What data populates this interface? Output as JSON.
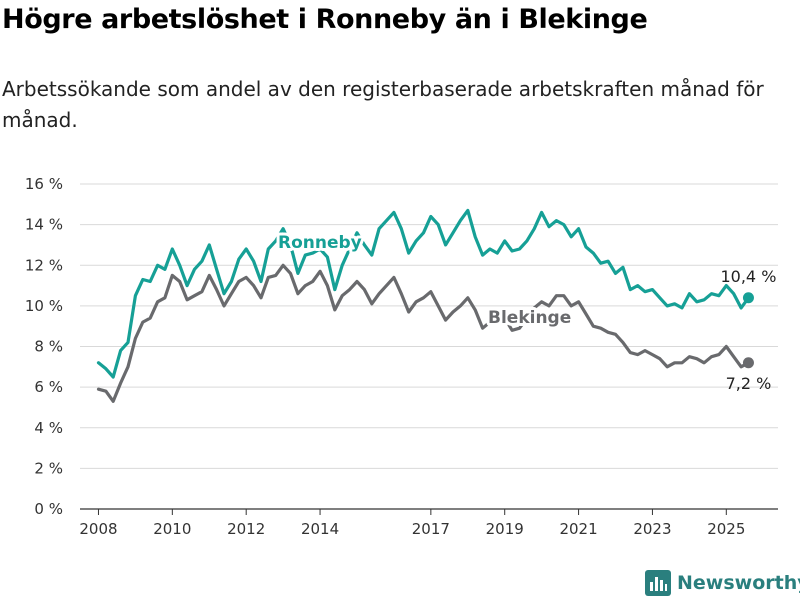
{
  "title": "Högre arbetslöshet i Ronneby än i Blekinge",
  "subtitle": "Arbetssökande som andel av den registerbaserade arbetskraften månad för månad.",
  "brand": "Newsworthy",
  "colors": {
    "ronneby": "#16a096",
    "blekinge": "#696a6d",
    "grid": "#d9d9d9",
    "axis": "#333333"
  },
  "chart_data": {
    "type": "line",
    "y_ticks": [
      0,
      2,
      4,
      6,
      8,
      10,
      12,
      14,
      16
    ],
    "y_tick_labels": [
      "0 %",
      "2 %",
      "4 %",
      "6 %",
      "8 %",
      "10 %",
      "12 %",
      "14 %",
      "16 %"
    ],
    "ylim": [
      0,
      16
    ],
    "xlim": [
      2007.5,
      2026.4
    ],
    "x_ticks": [
      2008,
      2010,
      2012,
      2014,
      2017,
      2019,
      2021,
      2023,
      2025
    ],
    "x_tick_labels": [
      "2008",
      "2010",
      "2012",
      "2014",
      "2017",
      "2019",
      "2021",
      "2023",
      "2025"
    ],
    "grid": true,
    "series": [
      {
        "name": "Ronneby",
        "color_key": "ronneby",
        "end_label": "10,4 %",
        "points": [
          [
            2008.0,
            7.2
          ],
          [
            2008.2,
            6.9
          ],
          [
            2008.4,
            6.5
          ],
          [
            2008.6,
            7.8
          ],
          [
            2008.8,
            8.2
          ],
          [
            2009.0,
            10.5
          ],
          [
            2009.2,
            11.3
          ],
          [
            2009.4,
            11.2
          ],
          [
            2009.6,
            12.0
          ],
          [
            2009.8,
            11.8
          ],
          [
            2010.0,
            12.8
          ],
          [
            2010.2,
            12.0
          ],
          [
            2010.4,
            11.0
          ],
          [
            2010.6,
            11.8
          ],
          [
            2010.8,
            12.2
          ],
          [
            2011.0,
            13.0
          ],
          [
            2011.2,
            11.8
          ],
          [
            2011.4,
            10.6
          ],
          [
            2011.6,
            11.2
          ],
          [
            2011.8,
            12.3
          ],
          [
            2012.0,
            12.8
          ],
          [
            2012.2,
            12.2
          ],
          [
            2012.4,
            11.2
          ],
          [
            2012.6,
            12.8
          ],
          [
            2012.8,
            13.2
          ],
          [
            2013.0,
            13.8
          ],
          [
            2013.2,
            13.0
          ],
          [
            2013.4,
            11.6
          ],
          [
            2013.6,
            12.5
          ],
          [
            2013.8,
            12.6
          ],
          [
            2014.0,
            12.8
          ],
          [
            2014.2,
            12.4
          ],
          [
            2014.4,
            10.8
          ],
          [
            2014.6,
            12.0
          ],
          [
            2014.8,
            12.8
          ],
          [
            2015.0,
            13.6
          ],
          [
            2015.2,
            13.0
          ],
          [
            2015.4,
            12.5
          ],
          [
            2015.6,
            13.8
          ],
          [
            2015.8,
            14.2
          ],
          [
            2016.0,
            14.6
          ],
          [
            2016.2,
            13.8
          ],
          [
            2016.4,
            12.6
          ],
          [
            2016.6,
            13.2
          ],
          [
            2016.8,
            13.6
          ],
          [
            2017.0,
            14.4
          ],
          [
            2017.2,
            14.0
          ],
          [
            2017.4,
            13.0
          ],
          [
            2017.6,
            13.6
          ],
          [
            2017.8,
            14.2
          ],
          [
            2018.0,
            14.7
          ],
          [
            2018.2,
            13.4
          ],
          [
            2018.4,
            12.5
          ],
          [
            2018.6,
            12.8
          ],
          [
            2018.8,
            12.6
          ],
          [
            2019.0,
            13.2
          ],
          [
            2019.2,
            12.7
          ],
          [
            2019.4,
            12.8
          ],
          [
            2019.6,
            13.2
          ],
          [
            2019.8,
            13.8
          ],
          [
            2020.0,
            14.6
          ],
          [
            2020.2,
            13.9
          ],
          [
            2020.4,
            14.2
          ],
          [
            2020.6,
            14.0
          ],
          [
            2020.8,
            13.4
          ],
          [
            2021.0,
            13.8
          ],
          [
            2021.2,
            12.9
          ],
          [
            2021.4,
            12.6
          ],
          [
            2021.6,
            12.1
          ],
          [
            2021.8,
            12.2
          ],
          [
            2022.0,
            11.6
          ],
          [
            2022.2,
            11.9
          ],
          [
            2022.4,
            10.8
          ],
          [
            2022.6,
            11.0
          ],
          [
            2022.8,
            10.7
          ],
          [
            2023.0,
            10.8
          ],
          [
            2023.2,
            10.4
          ],
          [
            2023.4,
            10.0
          ],
          [
            2023.6,
            10.1
          ],
          [
            2023.8,
            9.9
          ],
          [
            2024.0,
            10.6
          ],
          [
            2024.2,
            10.2
          ],
          [
            2024.4,
            10.3
          ],
          [
            2024.6,
            10.6
          ],
          [
            2024.8,
            10.5
          ],
          [
            2025.0,
            11.0
          ],
          [
            2025.2,
            10.6
          ],
          [
            2025.4,
            9.9
          ],
          [
            2025.6,
            10.4
          ]
        ]
      },
      {
        "name": "Blekinge",
        "color_key": "blekinge",
        "end_label": "7,2 %",
        "points": [
          [
            2008.0,
            5.9
          ],
          [
            2008.2,
            5.8
          ],
          [
            2008.4,
            5.3
          ],
          [
            2008.6,
            6.2
          ],
          [
            2008.8,
            7.0
          ],
          [
            2009.0,
            8.4
          ],
          [
            2009.2,
            9.2
          ],
          [
            2009.4,
            9.4
          ],
          [
            2009.6,
            10.2
          ],
          [
            2009.8,
            10.4
          ],
          [
            2010.0,
            11.5
          ],
          [
            2010.2,
            11.2
          ],
          [
            2010.4,
            10.3
          ],
          [
            2010.6,
            10.5
          ],
          [
            2010.8,
            10.7
          ],
          [
            2011.0,
            11.5
          ],
          [
            2011.2,
            10.8
          ],
          [
            2011.4,
            10.0
          ],
          [
            2011.6,
            10.6
          ],
          [
            2011.8,
            11.2
          ],
          [
            2012.0,
            11.4
          ],
          [
            2012.2,
            11.0
          ],
          [
            2012.4,
            10.4
          ],
          [
            2012.6,
            11.4
          ],
          [
            2012.8,
            11.5
          ],
          [
            2013.0,
            12.0
          ],
          [
            2013.2,
            11.6
          ],
          [
            2013.4,
            10.6
          ],
          [
            2013.6,
            11.0
          ],
          [
            2013.8,
            11.2
          ],
          [
            2014.0,
            11.7
          ],
          [
            2014.2,
            11.0
          ],
          [
            2014.4,
            9.8
          ],
          [
            2014.6,
            10.5
          ],
          [
            2014.8,
            10.8
          ],
          [
            2015.0,
            11.2
          ],
          [
            2015.2,
            10.8
          ],
          [
            2015.4,
            10.1
          ],
          [
            2015.6,
            10.6
          ],
          [
            2015.8,
            11.0
          ],
          [
            2016.0,
            11.4
          ],
          [
            2016.2,
            10.6
          ],
          [
            2016.4,
            9.7
          ],
          [
            2016.6,
            10.2
          ],
          [
            2016.8,
            10.4
          ],
          [
            2017.0,
            10.7
          ],
          [
            2017.2,
            10.0
          ],
          [
            2017.4,
            9.3
          ],
          [
            2017.6,
            9.7
          ],
          [
            2017.8,
            10.0
          ],
          [
            2018.0,
            10.4
          ],
          [
            2018.2,
            9.8
          ],
          [
            2018.4,
            8.9
          ],
          [
            2018.6,
            9.2
          ],
          [
            2018.8,
            9.2
          ],
          [
            2019.0,
            9.4
          ],
          [
            2019.2,
            8.8
          ],
          [
            2019.4,
            8.9
          ],
          [
            2019.6,
            9.4
          ],
          [
            2019.8,
            9.9
          ],
          [
            2020.0,
            10.2
          ],
          [
            2020.2,
            10.0
          ],
          [
            2020.4,
            10.5
          ],
          [
            2020.6,
            10.5
          ],
          [
            2020.8,
            10.0
          ],
          [
            2021.0,
            10.2
          ],
          [
            2021.2,
            9.6
          ],
          [
            2021.4,
            9.0
          ],
          [
            2021.6,
            8.9
          ],
          [
            2021.8,
            8.7
          ],
          [
            2022.0,
            8.6
          ],
          [
            2022.2,
            8.2
          ],
          [
            2022.4,
            7.7
          ],
          [
            2022.6,
            7.6
          ],
          [
            2022.8,
            7.8
          ],
          [
            2023.0,
            7.6
          ],
          [
            2023.2,
            7.4
          ],
          [
            2023.4,
            7.0
          ],
          [
            2023.6,
            7.2
          ],
          [
            2023.8,
            7.2
          ],
          [
            2024.0,
            7.5
          ],
          [
            2024.2,
            7.4
          ],
          [
            2024.4,
            7.2
          ],
          [
            2024.6,
            7.5
          ],
          [
            2024.8,
            7.6
          ],
          [
            2025.0,
            8.0
          ],
          [
            2025.2,
            7.5
          ],
          [
            2025.4,
            7.0
          ],
          [
            2025.6,
            7.2
          ]
        ]
      }
    ]
  }
}
